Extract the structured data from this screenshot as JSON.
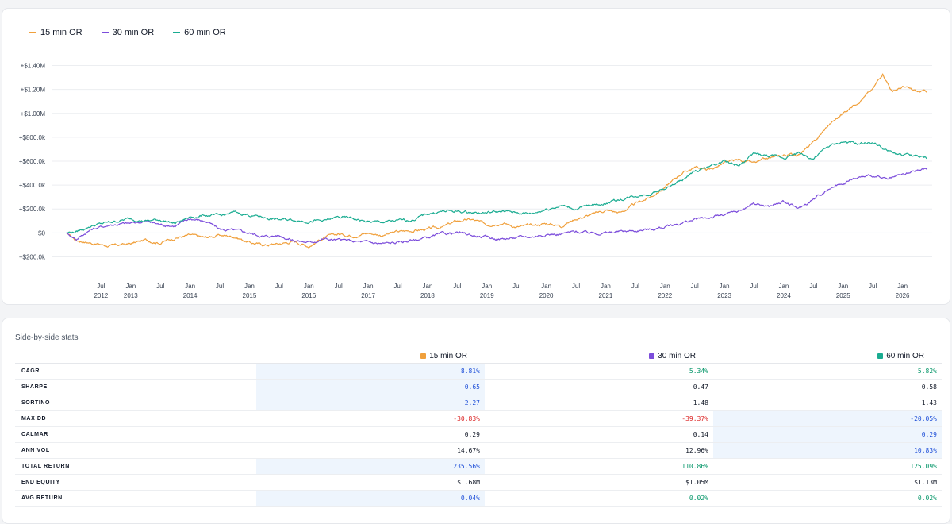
{
  "legend": [
    {
      "name": "15 min OR",
      "color": "#f0a03c"
    },
    {
      "name": "30 min OR",
      "color": "#7c4ddb"
    },
    {
      "name": "60 min OR",
      "color": "#1aac91"
    }
  ],
  "chart_data": {
    "type": "line",
    "ylim": [
      -250000,
      1450000
    ],
    "yticks": [
      {
        "value": 1400000,
        "label": "+$1.40M"
      },
      {
        "value": 1200000,
        "label": "+$1.20M"
      },
      {
        "value": 1000000,
        "label": "+$1.00M"
      },
      {
        "value": 800000,
        "label": "+$800.0k"
      },
      {
        "value": 600000,
        "label": "+$600.0k"
      },
      {
        "value": 400000,
        "label": "+$400.0k"
      },
      {
        "value": 200000,
        "label": "+$200.0k"
      },
      {
        "value": 0,
        "label": "$0"
      },
      {
        "value": -200000,
        "label": "−$200.0k"
      }
    ],
    "xlim": [
      "2011-09",
      "2026-07"
    ],
    "xticks": [
      {
        "date": "2012-07",
        "month": "Jul",
        "year": "2012"
      },
      {
        "date": "2013-01",
        "month": "Jan",
        "year": "2013"
      },
      {
        "date": "2013-07",
        "month": "Jul",
        "year": ""
      },
      {
        "date": "2014-01",
        "month": "Jan",
        "year": "2014"
      },
      {
        "date": "2014-07",
        "month": "Jul",
        "year": ""
      },
      {
        "date": "2015-01",
        "month": "Jan",
        "year": "2015"
      },
      {
        "date": "2015-07",
        "month": "Jul",
        "year": ""
      },
      {
        "date": "2016-01",
        "month": "Jan",
        "year": "2016"
      },
      {
        "date": "2016-07",
        "month": "Jul",
        "year": ""
      },
      {
        "date": "2017-01",
        "month": "Jan",
        "year": "2017"
      },
      {
        "date": "2017-07",
        "month": "Jul",
        "year": ""
      },
      {
        "date": "2018-01",
        "month": "Jan",
        "year": "2018"
      },
      {
        "date": "2018-07",
        "month": "Jul",
        "year": ""
      },
      {
        "date": "2019-01",
        "month": "Jan",
        "year": "2019"
      },
      {
        "date": "2019-07",
        "month": "Jul",
        "year": ""
      },
      {
        "date": "2020-01",
        "month": "Jan",
        "year": "2020"
      },
      {
        "date": "2020-07",
        "month": "Jul",
        "year": ""
      },
      {
        "date": "2021-01",
        "month": "Jan",
        "year": "2021"
      },
      {
        "date": "2021-07",
        "month": "Jul",
        "year": ""
      },
      {
        "date": "2022-01",
        "month": "Jan",
        "year": "2022"
      },
      {
        "date": "2022-07",
        "month": "Jul",
        "year": ""
      },
      {
        "date": "2023-01",
        "month": "Jan",
        "year": "2023"
      },
      {
        "date": "2023-07",
        "month": "Jul",
        "year": ""
      },
      {
        "date": "2024-01",
        "month": "Jan",
        "year": "2024"
      },
      {
        "date": "2024-07",
        "month": "Jul",
        "year": ""
      },
      {
        "date": "2025-01",
        "month": "Jan",
        "year": "2025"
      },
      {
        "date": "2025-07",
        "month": "Jul",
        "year": ""
      },
      {
        "date": "2026-01",
        "month": "Jan",
        "year": "2026"
      }
    ],
    "grid": "horizontal",
    "legend_position": "top-left",
    "series": [
      {
        "name": "15 min OR",
        "color": "#f0a03c",
        "points": [
          [
            "2011-12",
            0
          ],
          [
            "2012-02",
            -60000
          ],
          [
            "2012-06",
            -90000
          ],
          [
            "2012-09",
            -110000
          ],
          [
            "2013-01",
            -90000
          ],
          [
            "2013-04",
            -60000
          ],
          [
            "2013-07",
            -80000
          ],
          [
            "2013-10",
            -40000
          ],
          [
            "2014-01",
            -20000
          ],
          [
            "2014-04",
            -40000
          ],
          [
            "2014-07",
            -20000
          ],
          [
            "2014-10",
            -30000
          ],
          [
            "2015-01",
            -80000
          ],
          [
            "2015-04",
            -100000
          ],
          [
            "2015-07",
            -90000
          ],
          [
            "2015-10",
            -70000
          ],
          [
            "2016-01",
            -110000
          ],
          [
            "2016-04",
            -40000
          ],
          [
            "2016-07",
            -10000
          ],
          [
            "2016-10",
            -20000
          ],
          [
            "2017-01",
            0
          ],
          [
            "2017-04",
            -20000
          ],
          [
            "2017-07",
            10000
          ],
          [
            "2017-10",
            20000
          ],
          [
            "2018-01",
            30000
          ],
          [
            "2018-04",
            50000
          ],
          [
            "2018-07",
            100000
          ],
          [
            "2018-10",
            110000
          ],
          [
            "2019-01",
            70000
          ],
          [
            "2019-04",
            90000
          ],
          [
            "2019-07",
            50000
          ],
          [
            "2019-10",
            60000
          ],
          [
            "2020-01",
            80000
          ],
          [
            "2020-04",
            60000
          ],
          [
            "2020-07",
            120000
          ],
          [
            "2020-10",
            150000
          ],
          [
            "2021-01",
            190000
          ],
          [
            "2021-04",
            170000
          ],
          [
            "2021-07",
            240000
          ],
          [
            "2021-10",
            300000
          ],
          [
            "2022-01",
            380000
          ],
          [
            "2022-04",
            490000
          ],
          [
            "2022-07",
            550000
          ],
          [
            "2022-10",
            530000
          ],
          [
            "2023-01",
            580000
          ],
          [
            "2023-04",
            610000
          ],
          [
            "2023-07",
            580000
          ],
          [
            "2023-10",
            620000
          ],
          [
            "2024-01",
            650000
          ],
          [
            "2024-04",
            660000
          ],
          [
            "2024-07",
            750000
          ],
          [
            "2024-10",
            900000
          ],
          [
            "2025-01",
            1000000
          ],
          [
            "2025-04",
            1100000
          ],
          [
            "2025-07",
            1200000
          ],
          [
            "2025-09",
            1340000
          ],
          [
            "2025-11",
            1180000
          ],
          [
            "2026-01",
            1220000
          ],
          [
            "2026-04",
            1180000
          ],
          [
            "2026-06",
            1180000
          ]
        ]
      },
      {
        "name": "30 min OR",
        "color": "#7c4ddb",
        "points": [
          [
            "2011-12",
            0
          ],
          [
            "2012-02",
            -50000
          ],
          [
            "2012-05",
            30000
          ],
          [
            "2012-09",
            70000
          ],
          [
            "2013-01",
            80000
          ],
          [
            "2013-04",
            100000
          ],
          [
            "2013-07",
            70000
          ],
          [
            "2013-10",
            60000
          ],
          [
            "2014-01",
            120000
          ],
          [
            "2014-04",
            100000
          ],
          [
            "2014-07",
            30000
          ],
          [
            "2014-10",
            20000
          ],
          [
            "2015-01",
            0
          ],
          [
            "2015-04",
            -30000
          ],
          [
            "2015-07",
            -20000
          ],
          [
            "2015-10",
            -60000
          ],
          [
            "2016-01",
            -80000
          ],
          [
            "2016-04",
            -50000
          ],
          [
            "2016-07",
            -60000
          ],
          [
            "2016-10",
            -70000
          ],
          [
            "2017-01",
            -80000
          ],
          [
            "2017-04",
            -90000
          ],
          [
            "2017-07",
            -80000
          ],
          [
            "2017-10",
            -60000
          ],
          [
            "2018-01",
            -40000
          ],
          [
            "2018-04",
            -10000
          ],
          [
            "2018-07",
            0
          ],
          [
            "2018-10",
            -20000
          ],
          [
            "2019-01",
            -40000
          ],
          [
            "2019-04",
            -50000
          ],
          [
            "2019-07",
            -40000
          ],
          [
            "2019-10",
            -30000
          ],
          [
            "2020-01",
            -10000
          ],
          [
            "2020-04",
            -10000
          ],
          [
            "2020-07",
            10000
          ],
          [
            "2020-10",
            0
          ],
          [
            "2021-01",
            0
          ],
          [
            "2021-04",
            10000
          ],
          [
            "2021-07",
            20000
          ],
          [
            "2021-10",
            30000
          ],
          [
            "2022-01",
            50000
          ],
          [
            "2022-04",
            80000
          ],
          [
            "2022-07",
            110000
          ],
          [
            "2022-10",
            130000
          ],
          [
            "2023-01",
            150000
          ],
          [
            "2023-04",
            180000
          ],
          [
            "2023-07",
            250000
          ],
          [
            "2023-10",
            220000
          ],
          [
            "2024-01",
            260000
          ],
          [
            "2024-04",
            200000
          ],
          [
            "2024-07",
            280000
          ],
          [
            "2024-10",
            370000
          ],
          [
            "2025-01",
            420000
          ],
          [
            "2025-04",
            460000
          ],
          [
            "2025-07",
            480000
          ],
          [
            "2025-10",
            440000
          ],
          [
            "2026-01",
            480000
          ],
          [
            "2026-04",
            520000
          ],
          [
            "2026-06",
            540000
          ]
        ]
      },
      {
        "name": "60 min OR",
        "color": "#1aac91",
        "points": [
          [
            "2011-12",
            0
          ],
          [
            "2012-02",
            10000
          ],
          [
            "2012-05",
            60000
          ],
          [
            "2012-09",
            90000
          ],
          [
            "2013-01",
            120000
          ],
          [
            "2013-04",
            100000
          ],
          [
            "2013-07",
            110000
          ],
          [
            "2013-10",
            80000
          ],
          [
            "2014-01",
            130000
          ],
          [
            "2014-04",
            150000
          ],
          [
            "2014-07",
            140000
          ],
          [
            "2014-10",
            170000
          ],
          [
            "2015-01",
            150000
          ],
          [
            "2015-04",
            130000
          ],
          [
            "2015-07",
            110000
          ],
          [
            "2015-10",
            110000
          ],
          [
            "2016-01",
            100000
          ],
          [
            "2016-04",
            100000
          ],
          [
            "2016-07",
            130000
          ],
          [
            "2016-10",
            120000
          ],
          [
            "2017-01",
            90000
          ],
          [
            "2017-04",
            90000
          ],
          [
            "2017-07",
            100000
          ],
          [
            "2017-10",
            110000
          ],
          [
            "2018-01",
            160000
          ],
          [
            "2018-04",
            180000
          ],
          [
            "2018-07",
            180000
          ],
          [
            "2018-10",
            170000
          ],
          [
            "2019-01",
            170000
          ],
          [
            "2019-04",
            180000
          ],
          [
            "2019-07",
            170000
          ],
          [
            "2019-10",
            160000
          ],
          [
            "2020-01",
            200000
          ],
          [
            "2020-04",
            230000
          ],
          [
            "2020-07",
            200000
          ],
          [
            "2020-10",
            230000
          ],
          [
            "2021-01",
            250000
          ],
          [
            "2021-04",
            280000
          ],
          [
            "2021-07",
            310000
          ],
          [
            "2021-10",
            330000
          ],
          [
            "2022-01",
            370000
          ],
          [
            "2022-04",
            430000
          ],
          [
            "2022-07",
            510000
          ],
          [
            "2022-10",
            560000
          ],
          [
            "2023-01",
            600000
          ],
          [
            "2023-04",
            560000
          ],
          [
            "2023-07",
            660000
          ],
          [
            "2023-10",
            640000
          ],
          [
            "2024-01",
            630000
          ],
          [
            "2024-04",
            670000
          ],
          [
            "2024-07",
            620000
          ],
          [
            "2024-10",
            720000
          ],
          [
            "2025-01",
            760000
          ],
          [
            "2025-04",
            740000
          ],
          [
            "2025-07",
            760000
          ],
          [
            "2025-10",
            680000
          ],
          [
            "2026-01",
            650000
          ],
          [
            "2026-04",
            640000
          ],
          [
            "2026-06",
            620000
          ]
        ]
      }
    ]
  },
  "stats": {
    "title": "Side-by-side stats",
    "columns": [
      {
        "name": "15 min OR",
        "color": "#f0a03c"
      },
      {
        "name": "30 min OR",
        "color": "#7c4ddb"
      },
      {
        "name": "60 min OR",
        "color": "#1aac91"
      }
    ],
    "rows": [
      {
        "metric": "CAGR",
        "values": [
          "8.81%",
          "5.34%",
          "5.82%"
        ],
        "colors": [
          "blue",
          "green",
          "green"
        ],
        "best": 0
      },
      {
        "metric": "SHARPE",
        "values": [
          "0.65",
          "0.47",
          "0.58"
        ],
        "colors": [
          "blue",
          "black",
          "black"
        ],
        "best": 0
      },
      {
        "metric": "SORTINO",
        "values": [
          "2.27",
          "1.48",
          "1.43"
        ],
        "colors": [
          "blue",
          "black",
          "black"
        ],
        "best": 0
      },
      {
        "metric": "MAX DD",
        "values": [
          "-30.83%",
          "-39.37%",
          "-20.05%"
        ],
        "colors": [
          "red",
          "red",
          "blue"
        ],
        "best": 2
      },
      {
        "metric": "CALMAR",
        "values": [
          "0.29",
          "0.14",
          "0.29"
        ],
        "colors": [
          "black",
          "black",
          "blue"
        ],
        "best": 2
      },
      {
        "metric": "ANN VOL",
        "values": [
          "14.67%",
          "12.96%",
          "10.83%"
        ],
        "colors": [
          "black",
          "black",
          "blue"
        ],
        "best": 2
      },
      {
        "metric": "TOTAL RETURN",
        "values": [
          "235.56%",
          "110.86%",
          "125.09%"
        ],
        "colors": [
          "blue",
          "green",
          "green"
        ],
        "best": 0
      },
      {
        "metric": "END EQUITY",
        "values": [
          "$1.68M",
          "$1.05M",
          "$1.13M"
        ],
        "colors": [
          "black",
          "black",
          "black"
        ],
        "best": -1
      },
      {
        "metric": "AVG RETURN",
        "values": [
          "0.04%",
          "0.02%",
          "0.02%"
        ],
        "colors": [
          "blue",
          "green",
          "green"
        ],
        "best": 0
      }
    ]
  }
}
